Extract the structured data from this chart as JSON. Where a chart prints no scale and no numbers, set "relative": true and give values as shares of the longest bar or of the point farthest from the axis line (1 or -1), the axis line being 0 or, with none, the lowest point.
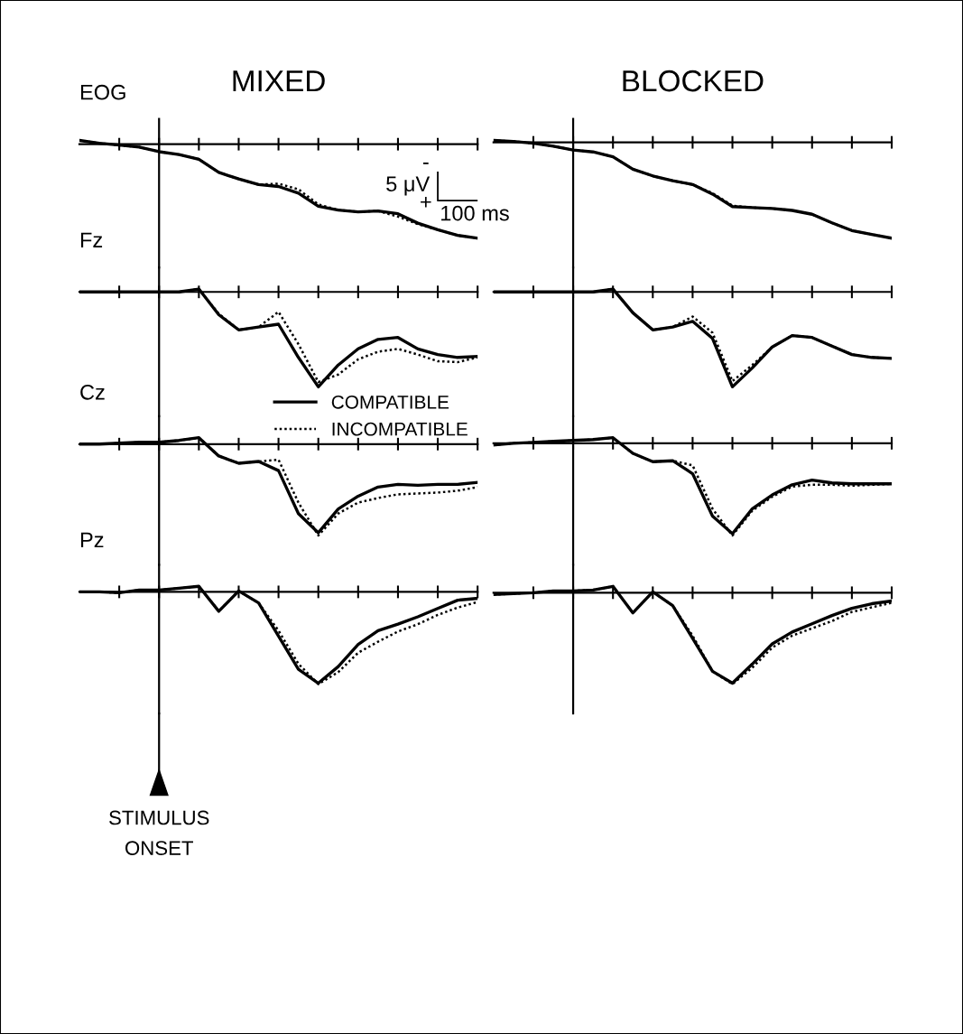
{
  "chart_data": [
    {
      "type": "line",
      "title": "MIXED",
      "ylabel": "EOG",
      "relative": true,
      "grid": false,
      "categories": [
        null,
        null,
        null,
        null,
        null,
        null,
        null,
        null,
        null,
        null,
        null,
        null,
        null,
        null,
        null,
        null,
        null,
        null,
        null,
        null,
        null
      ],
      "annotations": [
        "-",
        "5 μV",
        "+",
        "100 ms"
      ],
      "series": [
        {
          "color": "#000000",
          "line_style": "solid",
          "values": [
            0.04,
            0.01,
            -0.01,
            -0.03,
            -0.08,
            -0.11,
            -0.16,
            -0.3,
            -0.37,
            -0.43,
            -0.45,
            -0.52,
            -0.66,
            -0.7,
            -0.72,
            -0.71,
            -0.74,
            -0.84,
            -0.91,
            -0.97,
            -1
          ]
        },
        {
          "color": "#000000",
          "line_style": "dotted",
          "values": [
            0.04,
            0.01,
            -0.01,
            -0.03,
            -0.08,
            -0.11,
            -0.16,
            -0.3,
            -0.37,
            -0.43,
            -0.42,
            -0.48,
            -0.64,
            -0.7,
            -0.72,
            -0.71,
            -0.77,
            -0.85,
            -0.91,
            -0.97,
            -1
          ]
        }
      ]
    },
    {
      "type": "line",
      "title": "BLOCKED",
      "relative": true,
      "grid": false,
      "categories": [
        null,
        null,
        null,
        null,
        null,
        null,
        null,
        null,
        null,
        null,
        null,
        null,
        null,
        null,
        null,
        null,
        null,
        null,
        null,
        null,
        null
      ],
      "series": [
        {
          "color": "#000000",
          "line_style": "solid",
          "values": [
            0.02,
            0.01,
            -0.01,
            -0.04,
            -0.08,
            -0.1,
            -0.15,
            -0.28,
            -0.35,
            -0.4,
            -0.44,
            -0.54,
            -0.67,
            -0.68,
            -0.69,
            -0.71,
            -0.75,
            -0.84,
            -0.92,
            -0.96,
            -1
          ]
        },
        {
          "color": "#000000",
          "line_style": "dotted",
          "values": [
            0.02,
            0.01,
            -0.01,
            -0.04,
            -0.08,
            -0.1,
            -0.15,
            -0.28,
            -0.35,
            -0.4,
            -0.44,
            -0.53,
            -0.66,
            -0.68,
            -0.69,
            -0.71,
            -0.75,
            -0.84,
            -0.92,
            -0.96,
            -1
          ]
        }
      ]
    },
    {
      "type": "line",
      "ylabel": "Fz",
      "relative": true,
      "grid": false,
      "legend": "bottom right",
      "categories": [
        null,
        null,
        null,
        null,
        null,
        null,
        null,
        null,
        null,
        null,
        null,
        null,
        null,
        null,
        null,
        null,
        null,
        null,
        null,
        null,
        null
      ],
      "series": [
        {
          "name": "COMPATIBLE",
          "color": "#000000",
          "line_style": "solid",
          "values": [
            0,
            0,
            0,
            0,
            0,
            0,
            0.03,
            -0.24,
            -0.4,
            -0.37,
            -0.34,
            -0.69,
            -1,
            -0.77,
            -0.6,
            -0.5,
            -0.48,
            -0.6,
            -0.66,
            -0.69,
            -0.68
          ]
        },
        {
          "name": "INCOMPATIBLE",
          "color": "#000000",
          "line_style": "dotted",
          "values": [
            0,
            0,
            0,
            0,
            0,
            0,
            0.03,
            -0.23,
            -0.4,
            -0.37,
            -0.21,
            -0.55,
            -0.95,
            -0.87,
            -0.71,
            -0.63,
            -0.6,
            -0.66,
            -0.73,
            -0.74,
            -0.69
          ]
        }
      ]
    },
    {
      "type": "line",
      "relative": true,
      "grid": false,
      "categories": [
        null,
        null,
        null,
        null,
        null,
        null,
        null,
        null,
        null,
        null,
        null,
        null,
        null,
        null,
        null,
        null,
        null,
        null,
        null,
        null,
        null
      ],
      "series": [
        {
          "color": "#000000",
          "line_style": "solid",
          "values": [
            0,
            0,
            0,
            0,
            0,
            0,
            0.03,
            -0.22,
            -0.4,
            -0.37,
            -0.31,
            -0.49,
            -1,
            -0.8,
            -0.58,
            -0.46,
            -0.48,
            -0.57,
            -0.66,
            -0.69,
            -0.7
          ]
        },
        {
          "color": "#000000",
          "line_style": "dotted",
          "values": [
            0,
            0,
            0,
            0,
            0,
            0,
            0.03,
            -0.22,
            -0.4,
            -0.37,
            -0.26,
            -0.43,
            -0.94,
            -0.77,
            -0.58,
            -0.46,
            -0.48,
            -0.57,
            -0.66,
            -0.69,
            -0.7
          ]
        }
      ]
    },
    {
      "type": "line",
      "ylabel": "Cz",
      "relative": true,
      "grid": false,
      "categories": [
        null,
        null,
        null,
        null,
        null,
        null,
        null,
        null,
        null,
        null,
        null,
        null,
        null,
        null,
        null,
        null,
        null,
        null,
        null,
        null,
        null
      ],
      "series": [
        {
          "color": "#000000",
          "line_style": "solid",
          "values": [
            0,
            0,
            0.01,
            0.02,
            0.02,
            0.04,
            0.07,
            -0.13,
            -0.21,
            -0.19,
            -0.29,
            -0.76,
            -0.97,
            -0.71,
            -0.57,
            -0.47,
            -0.44,
            -0.45,
            -0.44,
            -0.44,
            -0.42
          ]
        },
        {
          "color": "#000000",
          "line_style": "dotted",
          "values": [
            0,
            0,
            0.01,
            0.02,
            0.02,
            0.04,
            0.07,
            -0.13,
            -0.21,
            -0.19,
            -0.17,
            -0.64,
            -1,
            -0.76,
            -0.64,
            -0.59,
            -0.55,
            -0.54,
            -0.53,
            -0.51,
            -0.47
          ]
        }
      ]
    },
    {
      "type": "line",
      "relative": true,
      "grid": false,
      "categories": [
        null,
        null,
        null,
        null,
        null,
        null,
        null,
        null,
        null,
        null,
        null,
        null,
        null,
        null,
        null,
        null,
        null,
        null,
        null,
        null,
        null
      ],
      "series": [
        {
          "color": "#000000",
          "line_style": "solid",
          "values": [
            -0.02,
            0,
            0.01,
            0.02,
            0.03,
            0.04,
            0.06,
            -0.11,
            -0.2,
            -0.19,
            -0.33,
            -0.79,
            -0.98,
            -0.71,
            -0.56,
            -0.45,
            -0.4,
            -0.43,
            -0.44,
            -0.44,
            -0.44
          ]
        },
        {
          "color": "#000000",
          "line_style": "dotted",
          "values": [
            -0.02,
            0,
            0.01,
            0.02,
            0.03,
            0.04,
            0.06,
            -0.11,
            -0.2,
            -0.19,
            -0.24,
            -0.71,
            -1,
            -0.73,
            -0.58,
            -0.47,
            -0.45,
            -0.45,
            -0.46,
            -0.45,
            -0.44
          ]
        }
      ]
    },
    {
      "type": "line",
      "ylabel": "Pz",
      "relative": true,
      "grid": false,
      "categories": [
        null,
        null,
        null,
        null,
        null,
        null,
        null,
        null,
        null,
        null,
        null,
        null,
        null,
        null,
        null,
        null,
        null,
        null,
        null,
        null,
        null
      ],
      "annotations": [
        "STIMULUS\nONSET"
      ],
      "series": [
        {
          "color": "#000000",
          "line_style": "solid",
          "values": [
            0,
            0,
            -0.01,
            0.02,
            0.02,
            0.04,
            0.06,
            -0.21,
            0.01,
            -0.12,
            -0.48,
            -0.84,
            -0.99,
            -0.81,
            -0.57,
            -0.42,
            -0.35,
            -0.27,
            -0.18,
            -0.09,
            -0.07
          ]
        },
        {
          "color": "#000000",
          "line_style": "dotted",
          "values": [
            0,
            0,
            -0.01,
            0.02,
            0.02,
            0.04,
            0.06,
            -0.21,
            0.01,
            -0.12,
            -0.42,
            -0.78,
            -1,
            -0.87,
            -0.66,
            -0.54,
            -0.43,
            -0.35,
            -0.25,
            -0.17,
            -0.11
          ]
        }
      ]
    },
    {
      "type": "line",
      "relative": true,
      "grid": false,
      "categories": [
        null,
        null,
        null,
        null,
        null,
        null,
        null,
        null,
        null,
        null,
        null,
        null,
        null,
        null,
        null,
        null,
        null,
        null,
        null,
        null,
        null
      ],
      "series": [
        {
          "color": "#000000",
          "line_style": "solid",
          "values": [
            -0.02,
            -0.01,
            0,
            0.02,
            0.02,
            0.03,
            0.07,
            -0.22,
            0.01,
            -0.14,
            -0.5,
            -0.86,
            -0.99,
            -0.78,
            -0.56,
            -0.43,
            -0.34,
            -0.25,
            -0.17,
            -0.12,
            -0.09
          ]
        },
        {
          "color": "#000000",
          "line_style": "dotted",
          "values": [
            -0.02,
            -0.01,
            0,
            0.02,
            0.02,
            0.03,
            0.07,
            -0.22,
            0.01,
            -0.14,
            -0.47,
            -0.86,
            -1,
            -0.82,
            -0.6,
            -0.47,
            -0.39,
            -0.31,
            -0.21,
            -0.16,
            -0.11
          ]
        }
      ]
    }
  ]
}
